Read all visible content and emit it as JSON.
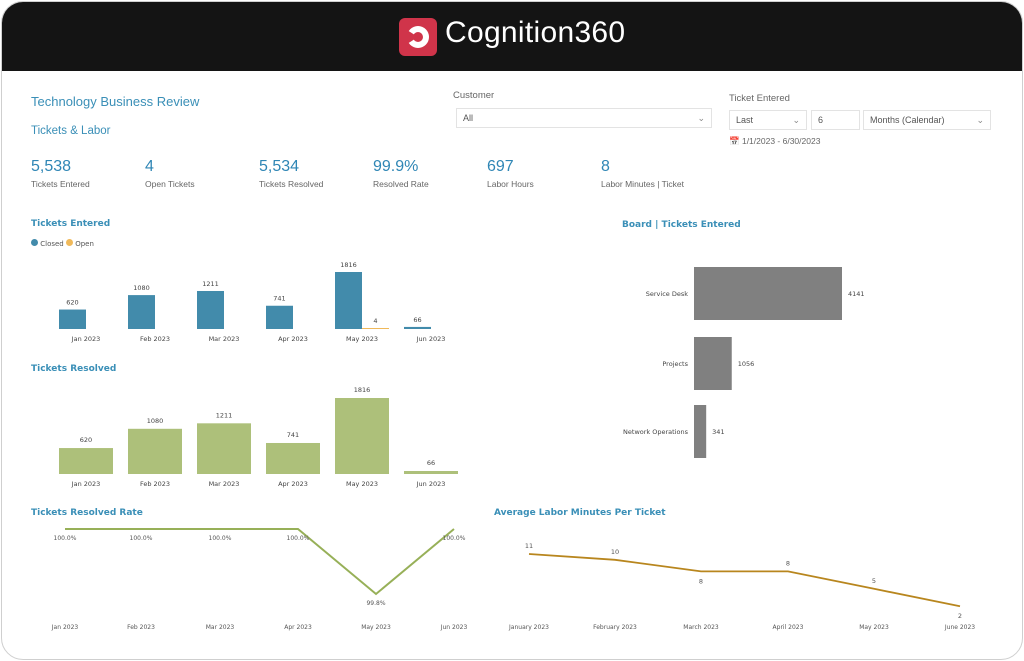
{
  "header": {
    "brand": "Cognition360",
    "logo_icon": "cognition360-logo",
    "brand_color": "#d0344a"
  },
  "report": {
    "title": "Technology Business Review",
    "section": "Tickets & Labor"
  },
  "filters": {
    "customer": {
      "label": "Customer",
      "value": "All"
    },
    "ticket_entered": {
      "label": "Ticket Entered",
      "relative": "Last",
      "count": "6",
      "unit": "Months (Calendar)",
      "range": "1/1/2023 - 6/30/2023"
    }
  },
  "kpis": [
    {
      "value": "5,538",
      "label": "Tickets Entered"
    },
    {
      "value": "4",
      "label": "Open Tickets"
    },
    {
      "value": "5,534",
      "label": "Tickets Resolved"
    },
    {
      "value": "99.9%",
      "label": "Resolved Rate"
    },
    {
      "value": "697",
      "label": "Labor Hours"
    },
    {
      "value": "8",
      "label": "Labor Minutes | Ticket"
    }
  ],
  "chart_data": [
    {
      "type": "bar",
      "title": "Tickets Entered",
      "categories": [
        "Jan 2023",
        "Feb 2023",
        "Mar 2023",
        "Apr 2023",
        "May 2023",
        "Jun 2023"
      ],
      "series": [
        {
          "name": "Closed",
          "color": "#428bab",
          "values": [
            620,
            1080,
            1211,
            741,
            1816,
            66
          ]
        },
        {
          "name": "Open",
          "color": "#f0b95a",
          "values": [
            0,
            0,
            0,
            0,
            4,
            0
          ]
        }
      ],
      "legend": "top-left",
      "grid": false
    },
    {
      "type": "bar",
      "title": "Tickets Resolved",
      "categories": [
        "Jan 2023",
        "Feb 2023",
        "Mar 2023",
        "Apr 2023",
        "May 2023",
        "Jun 2023"
      ],
      "values": [
        620,
        1080,
        1211,
        741,
        1816,
        66
      ],
      "color": "#adc07a",
      "grid": false
    },
    {
      "type": "bar",
      "orientation": "horizontal",
      "title": "Board | Tickets Entered",
      "categories": [
        "Service Desk",
        "Projects",
        "Network Operations"
      ],
      "values": [
        4141,
        1056,
        341
      ],
      "color": "#808080",
      "grid": false
    },
    {
      "type": "line",
      "title": "Tickets Resolved Rate",
      "categories": [
        "Jan 2023",
        "Feb 2023",
        "Mar 2023",
        "Apr 2023",
        "May 2023",
        "Jun 2023"
      ],
      "values": [
        100.0,
        100.0,
        100.0,
        100.0,
        99.8,
        100.0
      ],
      "labels": [
        "100.0%",
        "100.0%",
        "100.0%",
        "100.0%",
        "99.8%",
        "100.0%"
      ],
      "color": "#97b058",
      "grid": false
    },
    {
      "type": "line",
      "title": "Average Labor Minutes Per Ticket",
      "categories": [
        "January 2023",
        "February 2023",
        "March 2023",
        "April 2023",
        "May 2023",
        "June 2023"
      ],
      "values": [
        11,
        10,
        8,
        8,
        5,
        2
      ],
      "color": "#b8861e",
      "grid": false
    }
  ]
}
